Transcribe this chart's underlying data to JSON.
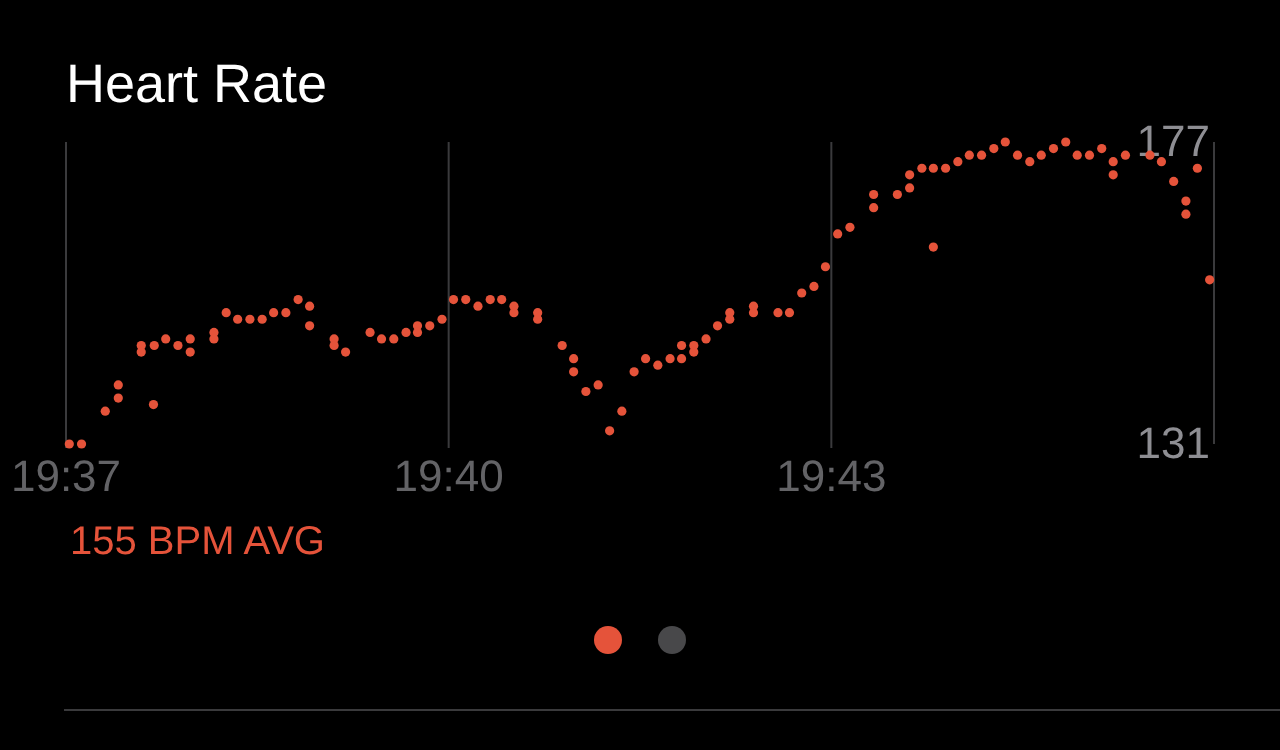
{
  "chart_data": {
    "type": "scatter",
    "title": "Heart Rate",
    "annotations": [
      "155 BPM AVG"
    ],
    "x": [
      19.6171,
      19.6187,
      19.6218,
      19.6235,
      19.6235,
      19.6265,
      19.6265,
      19.6281,
      19.6282,
      19.6297,
      19.6313,
      19.6329,
      19.6329,
      19.636,
      19.636,
      19.6376,
      19.6391,
      19.6407,
      19.6423,
      19.6438,
      19.6454,
      19.647,
      19.6485,
      19.6485,
      19.6517,
      19.6517,
      19.6532,
      19.6564,
      19.6579,
      19.6595,
      19.6611,
      19.6626,
      19.6626,
      19.6642,
      19.6658,
      19.6673,
      19.6689,
      19.6705,
      19.6721,
      19.6736,
      19.6752,
      19.6752,
      19.6783,
      19.6783,
      19.6815,
      19.683,
      19.683,
      19.6846,
      19.6862,
      19.6877,
      19.6893,
      19.6909,
      19.6924,
      19.694,
      19.6956,
      19.6971,
      19.6971,
      19.6987,
      19.6987,
      19.7003,
      19.7018,
      19.7034,
      19.7034,
      19.7065,
      19.7065,
      19.7097,
      19.7112,
      19.7128,
      19.7144,
      19.7159,
      19.7175,
      19.7191,
      19.7222,
      19.7222,
      19.7253,
      19.7269,
      19.7269,
      19.7285,
      19.73,
      19.73,
      19.7316,
      19.7332,
      19.7347,
      19.7363,
      19.7379,
      19.7394,
      19.741,
      19.7426,
      19.7441,
      19.7457,
      19.7473,
      19.7488,
      19.7504,
      19.752,
      19.7535,
      19.7535,
      19.7551,
      19.7583,
      19.7598,
      19.7614,
      19.763,
      19.763,
      19.7645,
      19.7661
    ],
    "series": [
      {
        "color": "#e5533a",
        "values": [
          131,
          131,
          136,
          138,
          140,
          146,
          145,
          137,
          146,
          147,
          146,
          147,
          145,
          148,
          147,
          151,
          150,
          150,
          150,
          151,
          151,
          153,
          152,
          149,
          147,
          146,
          145,
          148,
          147,
          147,
          148,
          149,
          148,
          149,
          150,
          153,
          153,
          152,
          153,
          153,
          152,
          151,
          151,
          150,
          146,
          144,
          142,
          139,
          140,
          133,
          136,
          142,
          144,
          143,
          144,
          144,
          146,
          146,
          145,
          147,
          149,
          151,
          150,
          152,
          151,
          151,
          151,
          154,
          155,
          158,
          163,
          164,
          169,
          167,
          169,
          172,
          170,
          173,
          173,
          161,
          173,
          174,
          175,
          175,
          176,
          177,
          175,
          174,
          175,
          176,
          177,
          175,
          175,
          176,
          174,
          172,
          175,
          175,
          174,
          171,
          168,
          166,
          173,
          156
        ]
      }
    ],
    "xlim": [
      19.61667,
      19.76667
    ],
    "xticks": [
      {
        "value": 19.61667,
        "label": "19:37"
      },
      {
        "value": 19.66667,
        "label": "19:40"
      },
      {
        "value": 19.71667,
        "label": "19:43"
      }
    ],
    "ylim": [
      131,
      177
    ],
    "yticks": [
      177,
      131
    ],
    "grid": "x",
    "marker": "circle"
  }
}
